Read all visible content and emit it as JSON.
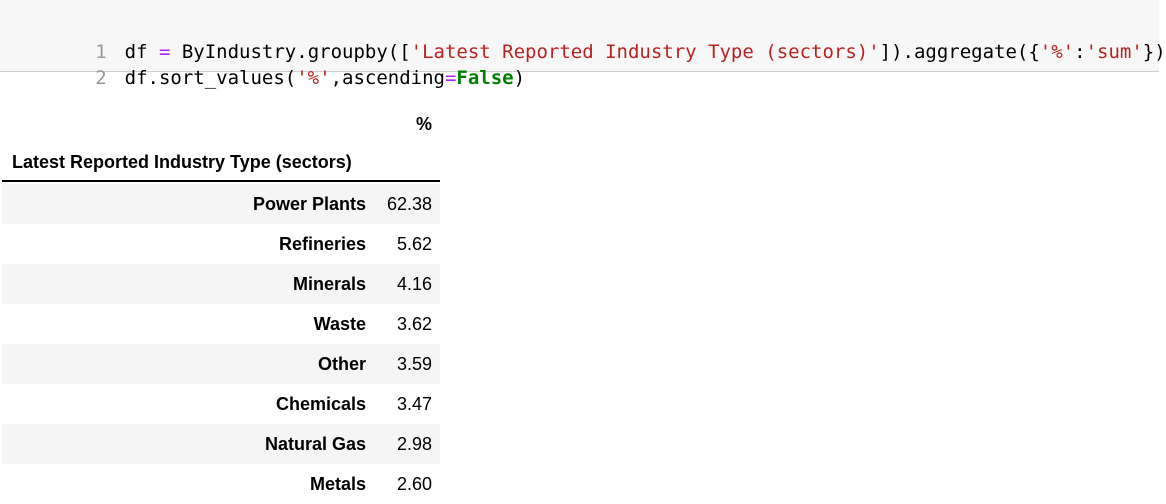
{
  "code": {
    "lines": [
      {
        "number": "1",
        "tokens": [
          {
            "t": "df ",
            "c": ""
          },
          {
            "t": "=",
            "c": "op"
          },
          {
            "t": " ByIndustry.groupby([",
            "c": ""
          },
          {
            "t": "'Latest Reported Industry Type (sectors)'",
            "c": "str"
          },
          {
            "t": "]).aggregate({",
            "c": ""
          },
          {
            "t": "'%'",
            "c": "str"
          },
          {
            "t": ":",
            "c": ""
          },
          {
            "t": "'sum'",
            "c": "str"
          },
          {
            "t": "})",
            "c": ""
          }
        ]
      },
      {
        "number": "2",
        "tokens": [
          {
            "t": "df.sort_values(",
            "c": ""
          },
          {
            "t": "'%'",
            "c": "str"
          },
          {
            "t": ",ascending",
            "c": ""
          },
          {
            "t": "=",
            "c": "op"
          },
          {
            "t": "False",
            "c": "kw"
          },
          {
            "t": ")",
            "c": ""
          }
        ]
      }
    ]
  },
  "table": {
    "column_header": "%",
    "index_header": "Latest Reported Industry Type (sectors)",
    "rows": [
      {
        "label": "Power Plants",
        "value": "62.38"
      },
      {
        "label": "Refineries",
        "value": "5.62"
      },
      {
        "label": "Minerals",
        "value": "4.16"
      },
      {
        "label": "Waste",
        "value": "3.62"
      },
      {
        "label": "Other",
        "value": "3.59"
      },
      {
        "label": "Chemicals",
        "value": "3.47"
      },
      {
        "label": "Natural Gas",
        "value": "2.98"
      },
      {
        "label": "Metals",
        "value": "2.60"
      }
    ]
  },
  "colors": {
    "string": "#ba2121",
    "operator": "#aa22ff",
    "keyword": "#008000",
    "line_number": "#999999",
    "cell_background": "#f7f7f7",
    "row_stripe": "#f5f5f5"
  }
}
